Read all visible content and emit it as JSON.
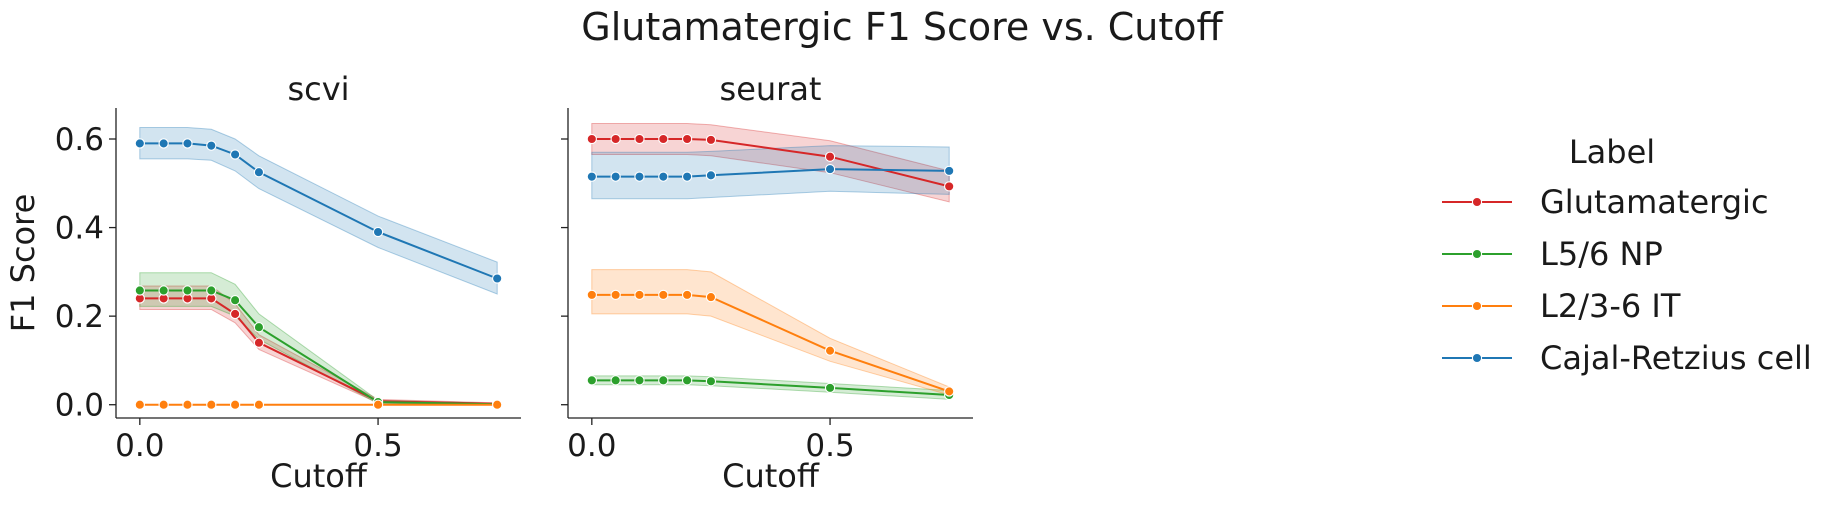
{
  "chart_data": {
    "type": "line",
    "title": "Glutamatergic F1 Score vs. Cutoff",
    "ylabel": "F1 Score",
    "xlim": [
      -0.05,
      0.8
    ],
    "ylim": [
      -0.03,
      0.67
    ],
    "xticks": [
      "0.0",
      "0.5"
    ],
    "yticks": [
      "0.0",
      "0.2",
      "0.4",
      "0.6"
    ],
    "x": [
      0.0,
      0.05,
      0.1,
      0.15,
      0.2,
      0.25,
      0.5,
      0.75
    ],
    "legend": {
      "title": "Label",
      "placement": "right"
    },
    "panels": [
      {
        "title": "scvi",
        "xlabel": "Cutoff",
        "series": [
          {
            "name": "Glutamatergic",
            "color": "#d62728",
            "values": [
              0.24,
              0.24,
              0.24,
              0.24,
              0.205,
              0.14,
              0.008,
              0.002
            ],
            "lower": [
              0.215,
              0.215,
              0.215,
              0.215,
              0.185,
              0.125,
              0.004,
              0.0
            ],
            "upper": [
              0.268,
              0.268,
              0.268,
              0.268,
              0.228,
              0.158,
              0.012,
              0.004
            ]
          },
          {
            "name": "L5/6 NP",
            "color": "#2ca02c",
            "values": [
              0.258,
              0.258,
              0.258,
              0.258,
              0.236,
              0.175,
              0.006,
              0.001
            ],
            "lower": [
              0.222,
              0.222,
              0.222,
              0.222,
              0.2,
              0.148,
              0.002,
              0.0
            ],
            "upper": [
              0.298,
              0.298,
              0.298,
              0.298,
              0.272,
              0.205,
              0.01,
              0.003
            ]
          },
          {
            "name": "L2/3-6 IT",
            "color": "#ff7f0e",
            "values": [
              0.0,
              0.0,
              0.0,
              0.0,
              0.0,
              0.0,
              0.0,
              0.0
            ],
            "lower": [
              0.0,
              0.0,
              0.0,
              0.0,
              0.0,
              0.0,
              0.0,
              0.0
            ],
            "upper": [
              0.0,
              0.0,
              0.0,
              0.0,
              0.0,
              0.0,
              0.0,
              0.0
            ]
          },
          {
            "name": "Cajal-Retzius cell",
            "color": "#1f77b4",
            "values": [
              0.59,
              0.59,
              0.59,
              0.585,
              0.565,
              0.525,
              0.39,
              0.285
            ],
            "lower": [
              0.555,
              0.555,
              0.555,
              0.552,
              0.528,
              0.488,
              0.355,
              0.25
            ],
            "upper": [
              0.626,
              0.626,
              0.626,
              0.622,
              0.6,
              0.562,
              0.426,
              0.322
            ]
          }
        ]
      },
      {
        "title": "seurat",
        "xlabel": "Cutoff",
        "series": [
          {
            "name": "Glutamatergic",
            "color": "#d62728",
            "values": [
              0.6,
              0.6,
              0.6,
              0.6,
              0.6,
              0.598,
              0.56,
              0.493
            ],
            "lower": [
              0.565,
              0.565,
              0.565,
              0.565,
              0.565,
              0.562,
              0.524,
              0.458
            ],
            "upper": [
              0.635,
              0.635,
              0.635,
              0.635,
              0.635,
              0.632,
              0.596,
              0.528
            ]
          },
          {
            "name": "L5/6 NP",
            "color": "#2ca02c",
            "values": [
              0.055,
              0.055,
              0.055,
              0.055,
              0.055,
              0.053,
              0.038,
              0.022
            ],
            "lower": [
              0.045,
              0.045,
              0.045,
              0.045,
              0.045,
              0.043,
              0.028,
              0.012
            ],
            "upper": [
              0.065,
              0.065,
              0.065,
              0.065,
              0.065,
              0.063,
              0.048,
              0.032
            ]
          },
          {
            "name": "L2/3-6 IT",
            "color": "#ff7f0e",
            "values": [
              0.248,
              0.248,
              0.248,
              0.248,
              0.248,
              0.243,
              0.122,
              0.03
            ],
            "lower": [
              0.205,
              0.205,
              0.205,
              0.205,
              0.205,
              0.2,
              0.098,
              0.022
            ],
            "upper": [
              0.305,
              0.305,
              0.305,
              0.305,
              0.305,
              0.3,
              0.15,
              0.04
            ]
          },
          {
            "name": "Cajal-Retzius cell",
            "color": "#1f77b4",
            "values": [
              0.515,
              0.515,
              0.515,
              0.515,
              0.515,
              0.518,
              0.532,
              0.528
            ],
            "lower": [
              0.465,
              0.465,
              0.465,
              0.465,
              0.465,
              0.468,
              0.482,
              0.475
            ],
            "upper": [
              0.57,
              0.57,
              0.57,
              0.57,
              0.57,
              0.572,
              0.585,
              0.582
            ]
          }
        ]
      }
    ]
  }
}
